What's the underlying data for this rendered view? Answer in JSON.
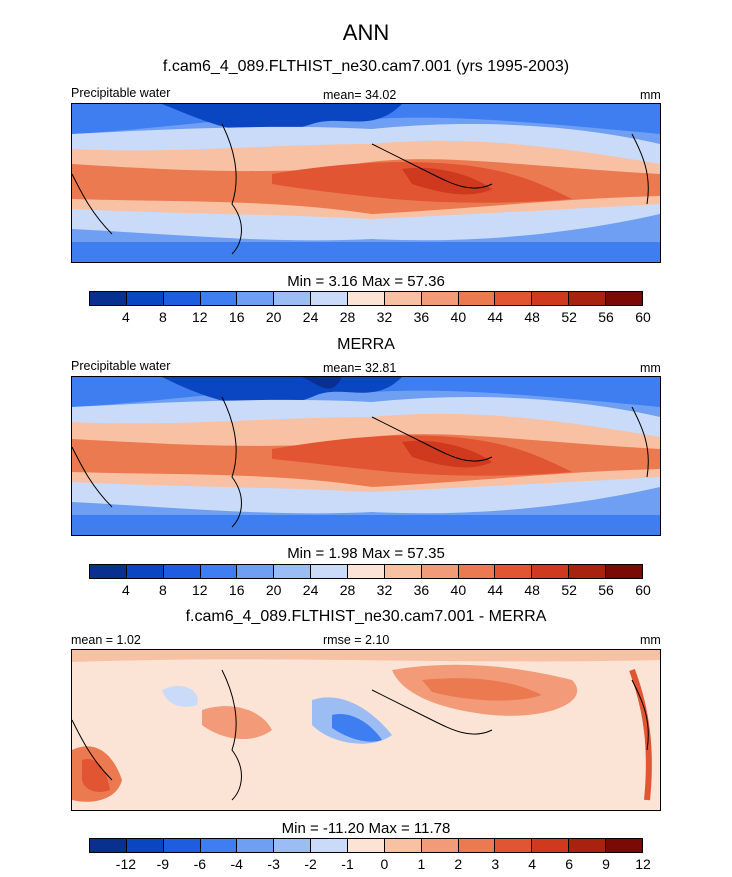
{
  "figure": {
    "title": "ANN"
  },
  "panels": [
    {
      "title": "f.cam6_4_089.FLTHIST_ne30.cam7.001 (yrs 1995-2003)",
      "left_label": "Precipitable water",
      "center_label": "mean=  34.02",
      "right_label": "mm",
      "minmax": "Min =   3.16 Max =  57.36",
      "colors": [
        "#08308f",
        "#0a46c2",
        "#1e5de0",
        "#3f7ef0",
        "#6f9ff2",
        "#9cbdf4",
        "#c9dbf8",
        "#fbe4d6",
        "#f8c1a4",
        "#f39b78",
        "#ec7a50",
        "#e25532",
        "#cf3a1f",
        "#a8220f",
        "#7a0a05"
      ],
      "ticks": [
        "4",
        "8",
        "12",
        "16",
        "20",
        "24",
        "28",
        "32",
        "36",
        "40",
        "44",
        "48",
        "52",
        "56",
        "60"
      ]
    },
    {
      "title": "MERRA",
      "left_label": "Precipitable water",
      "center_label": "mean=  32.81",
      "right_label": "mm",
      "minmax": "Min =   1.98 Max =  57.35",
      "colors": [
        "#08308f",
        "#0a46c2",
        "#1e5de0",
        "#3f7ef0",
        "#6f9ff2",
        "#9cbdf4",
        "#c9dbf8",
        "#fbe4d6",
        "#f8c1a4",
        "#f39b78",
        "#ec7a50",
        "#e25532",
        "#cf3a1f",
        "#a8220f",
        "#7a0a05"
      ],
      "ticks": [
        "4",
        "8",
        "12",
        "16",
        "20",
        "24",
        "28",
        "32",
        "36",
        "40",
        "44",
        "48",
        "52",
        "56",
        "60"
      ]
    },
    {
      "title": "f.cam6_4_089.FLTHIST_ne30.cam7.001 - MERRA",
      "left_label": "mean =   1.02",
      "center_label": "rmse =   2.10",
      "right_label": "mm",
      "minmax": "Min = -11.20 Max =  11.78",
      "colors": [
        "#08308f",
        "#0a46c2",
        "#1e5de0",
        "#3f7ef0",
        "#6f9ff2",
        "#9cbdf4",
        "#c9dbf8",
        "#fbe4d6",
        "#f8c1a4",
        "#f39b78",
        "#ec7a50",
        "#e25532",
        "#cf3a1f",
        "#a8220f",
        "#7a0a05"
      ],
      "ticks": [
        "-12",
        "-9",
        "-6",
        "-4",
        "-3",
        "-2",
        "-1",
        "0",
        "1",
        "2",
        "3",
        "4",
        "6",
        "9",
        "12"
      ]
    }
  ]
}
